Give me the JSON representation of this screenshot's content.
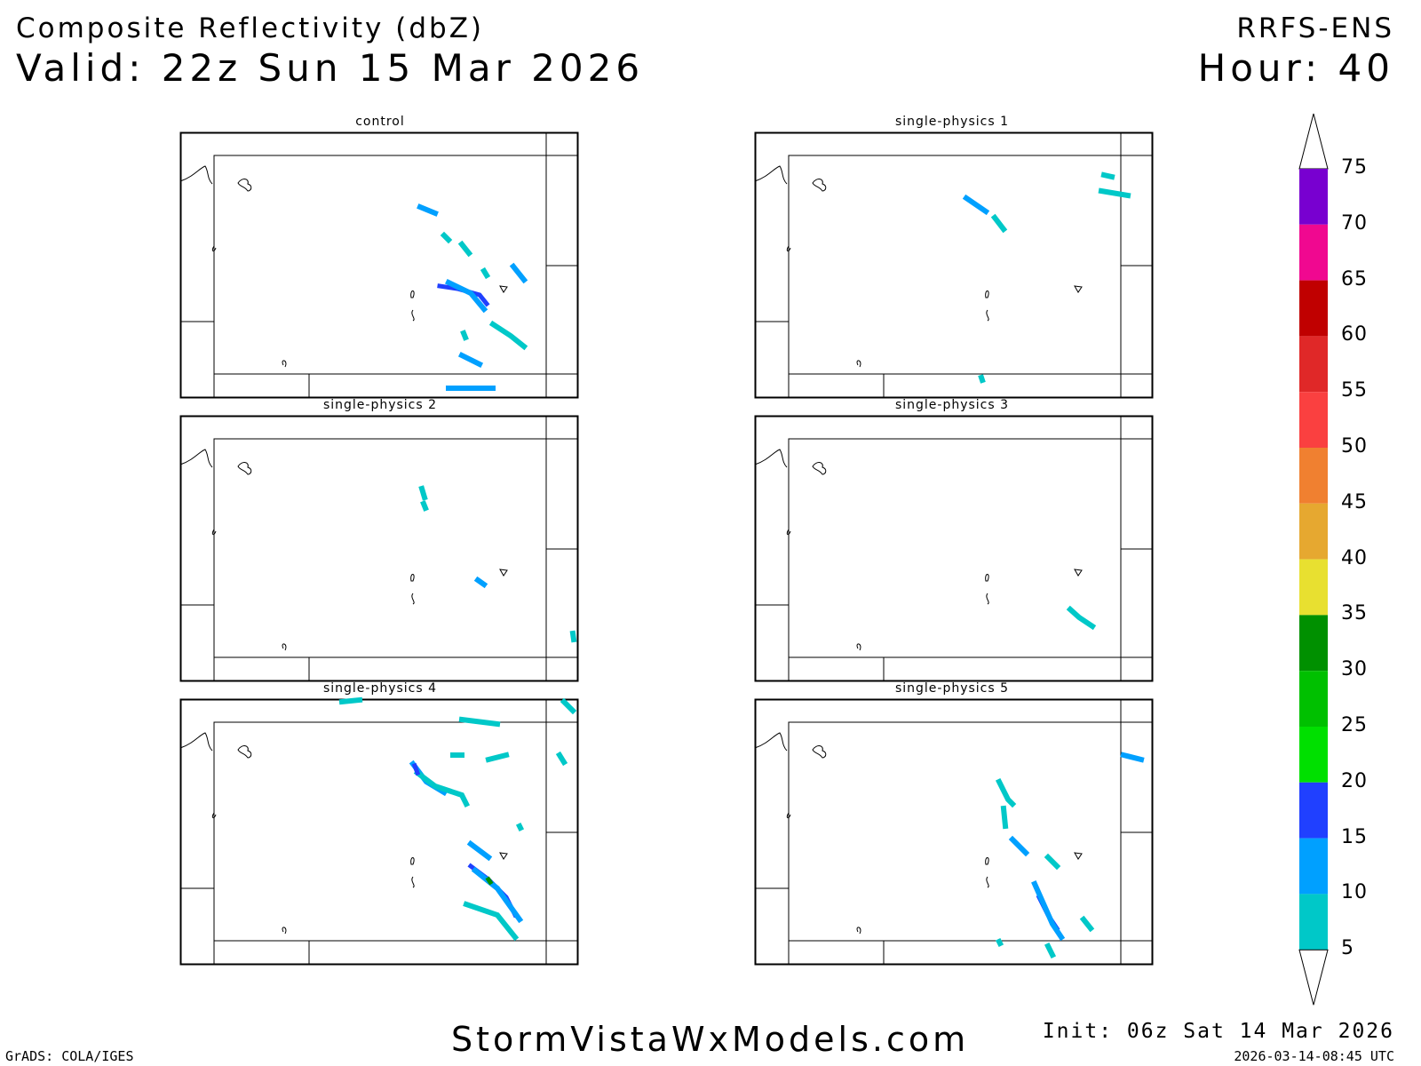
{
  "header": {
    "field": "Composite Reflectivity (dbZ)",
    "valid": "Valid: 22z Sun 15 Mar 2026",
    "model": "RRFS-ENS",
    "hour": "Hour: 40"
  },
  "panels": [
    {
      "label": "control",
      "echoes": [
        {
          "lvl": 10,
          "pts": [
            [
              473,
              233
            ],
            [
              490,
              240
            ]
          ]
        },
        {
          "lvl": 5,
          "pts": [
            [
              500,
              265
            ],
            [
              505,
              270
            ]
          ]
        },
        {
          "lvl": 5,
          "pts": [
            [
              520,
              275
            ],
            [
              528,
              285
            ]
          ]
        },
        {
          "lvl": 10,
          "pts": [
            [
              578,
              300
            ],
            [
              590,
              315
            ]
          ]
        },
        {
          "lvl": 5,
          "pts": [
            [
              545,
              305
            ],
            [
              548,
              310
            ]
          ]
        },
        {
          "lvl": 15,
          "pts": [
            [
              495,
              322
            ],
            [
              515,
              325
            ],
            [
              540,
              332
            ],
            [
              548,
              342
            ]
          ]
        },
        {
          "lvl": 10,
          "pts": [
            [
              505,
              318
            ],
            [
              530,
              330
            ],
            [
              545,
              348
            ]
          ]
        },
        {
          "lvl": 5,
          "pts": [
            [
              555,
              365
            ],
            [
              575,
              378
            ],
            [
              590,
              390
            ]
          ]
        },
        {
          "lvl": 10,
          "pts": [
            [
              520,
              400
            ],
            [
              540,
              410
            ]
          ]
        },
        {
          "lvl": 5,
          "pts": [
            [
              522,
              375
            ],
            [
              524,
              380
            ]
          ]
        },
        {
          "lvl": 10,
          "pts": [
            [
              505,
              437
            ],
            [
              555,
              437
            ]
          ]
        }
      ]
    },
    {
      "label": "single-physics 1",
      "echoes": [
        {
          "lvl": 10,
          "pts": [
            [
              1088,
              223
            ],
            [
              1110,
              238
            ]
          ]
        },
        {
          "lvl": 5,
          "pts": [
            [
              1120,
              245
            ],
            [
              1130,
              258
            ]
          ]
        },
        {
          "lvl": 5,
          "pts": [
            [
              1240,
              215
            ],
            [
              1270,
              220
            ]
          ]
        },
        {
          "lvl": 5,
          "pts": [
            [
              1243,
              197
            ],
            [
              1252,
              199
            ]
          ]
        },
        {
          "lvl": 5,
          "pts": [
            [
              1105,
              425
            ],
            [
              1106,
              428
            ]
          ]
        }
      ]
    },
    {
      "label": "single-physics 2",
      "echoes": [
        {
          "lvl": 5,
          "pts": [
            [
              475,
              550
            ],
            [
              478,
              560
            ]
          ]
        },
        {
          "lvl": 5,
          "pts": [
            [
              477,
              567
            ],
            [
              479,
              572
            ]
          ]
        },
        {
          "lvl": 10,
          "pts": [
            [
              538,
              653
            ],
            [
              545,
              658
            ]
          ]
        },
        {
          "lvl": 5,
          "pts": [
            [
              645,
              713
            ],
            [
              646,
              720
            ]
          ]
        }
      ]
    },
    {
      "label": "single-physics 3",
      "echoes": [
        {
          "lvl": 5,
          "pts": [
            [
              1205,
              686
            ],
            [
              1215,
              695
            ],
            [
              1230,
              705
            ]
          ]
        }
      ]
    },
    {
      "label": "single-physics 4",
      "echoes": [
        {
          "lvl": 5,
          "pts": [
            [
              385,
              790
            ],
            [
              405,
              788
            ]
          ]
        },
        {
          "lvl": 5,
          "pts": [
            [
              635,
              790
            ],
            [
              645,
              800
            ]
          ]
        },
        {
          "lvl": 5,
          "pts": [
            [
              520,
              810
            ],
            [
              560,
              815
            ]
          ]
        },
        {
          "lvl": 10,
          "pts": [
            [
              465,
              860
            ],
            [
              480,
              880
            ],
            [
              500,
              892
            ]
          ]
        },
        {
          "lvl": 5,
          "pts": [
            [
              470,
              870
            ],
            [
              490,
              885
            ],
            [
              520,
              895
            ],
            [
              525,
              905
            ]
          ]
        },
        {
          "lvl": 15,
          "pts": [
            [
              467,
              862
            ],
            [
              470,
              870
            ]
          ]
        },
        {
          "lvl": 5,
          "pts": [
            [
              510,
              850
            ],
            [
              520,
              850
            ]
          ]
        },
        {
          "lvl": 5,
          "pts": [
            [
              550,
              855
            ],
            [
              570,
              850
            ]
          ]
        },
        {
          "lvl": 10,
          "pts": [
            [
              530,
              950
            ],
            [
              550,
              965
            ]
          ]
        },
        {
          "lvl": 15,
          "pts": [
            [
              530,
              975
            ],
            [
              550,
              990
            ],
            [
              570,
              1010
            ],
            [
              580,
              1030
            ]
          ]
        },
        {
          "lvl": 10,
          "pts": [
            [
              535,
              980
            ],
            [
              560,
              1000
            ],
            [
              585,
              1035
            ]
          ]
        },
        {
          "lvl": 30,
          "pts": [
            [
              550,
              990
            ],
            [
              552,
              993
            ]
          ]
        },
        {
          "lvl": 5,
          "pts": [
            [
              525,
              1018
            ],
            [
              560,
              1030
            ],
            [
              580,
              1055
            ]
          ]
        },
        {
          "lvl": 5,
          "pts": [
            [
              630,
              850
            ],
            [
              635,
              858
            ]
          ]
        },
        {
          "lvl": 5,
          "pts": [
            [
              585,
              930
            ],
            [
              586,
              932
            ]
          ]
        }
      ]
    },
    {
      "label": "single-physics 5",
      "echoes": [
        {
          "lvl": 5,
          "pts": [
            [
              1125,
              880
            ],
            [
              1135,
              900
            ],
            [
              1140,
              905
            ]
          ]
        },
        {
          "lvl": 5,
          "pts": [
            [
              1130,
              910
            ],
            [
              1132,
              930
            ]
          ]
        },
        {
          "lvl": 10,
          "pts": [
            [
              1140,
              945
            ],
            [
              1155,
              960
            ]
          ]
        },
        {
          "lvl": 5,
          "pts": [
            [
              1180,
              965
            ],
            [
              1190,
              975
            ]
          ]
        },
        {
          "lvl": 15,
          "pts": [
            [
              1170,
              1010
            ],
            [
              1180,
              1030
            ],
            [
              1190,
              1045
            ]
          ]
        },
        {
          "lvl": 10,
          "pts": [
            [
              1165,
              995
            ],
            [
              1185,
              1040
            ],
            [
              1195,
              1055
            ]
          ]
        },
        {
          "lvl": 10,
          "pts": [
            [
              1265,
              850
            ],
            [
              1285,
              855
            ]
          ]
        },
        {
          "lvl": 5,
          "pts": [
            [
              1220,
              1035
            ],
            [
              1228,
              1045
            ]
          ]
        },
        {
          "lvl": 5,
          "pts": [
            [
              1180,
              1065
            ],
            [
              1185,
              1075
            ]
          ]
        },
        {
          "lvl": 5,
          "pts": [
            [
              1125,
              1060
            ],
            [
              1126,
              1062
            ]
          ]
        }
      ]
    }
  ],
  "colorbar": {
    "labels": [
      "5",
      "10",
      "15",
      "20",
      "25",
      "30",
      "35",
      "40",
      "45",
      "50",
      "55",
      "60",
      "65",
      "70",
      "75"
    ],
    "colors": [
      "#00c8c8",
      "#00a0ff",
      "#2040ff",
      "#00e000",
      "#00c000",
      "#009000",
      "#e8e030",
      "#e6a830",
      "#f08030",
      "#fa4040",
      "#e02828",
      "#c00000",
      "#f00890",
      "#7800d0"
    ]
  },
  "footer": {
    "software": "GrADS: COLA/IGES",
    "site": "StormVistaWxModels.com",
    "init": "Init: 06z Sat 14 Mar 2026",
    "stamp": "2026-03-14-08:45 UTC"
  }
}
